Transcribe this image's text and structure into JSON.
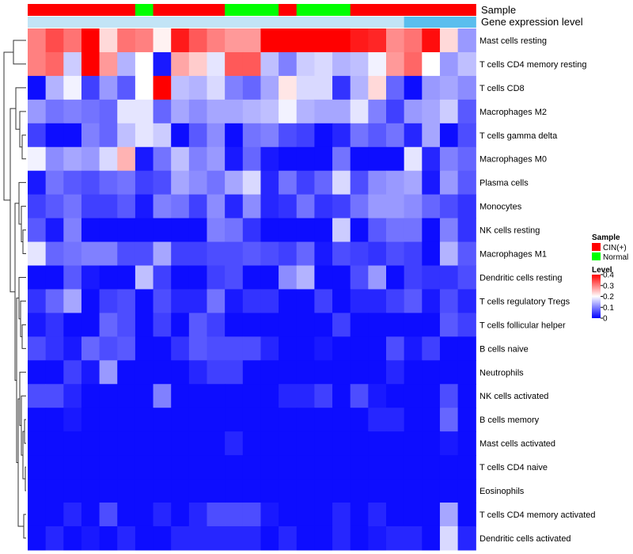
{
  "chart_data": {
    "type": "heatmap",
    "annotation_labels": {
      "sample": "Sample",
      "level": "Gene expression level"
    },
    "legend": {
      "sample_title": "Sample",
      "sample_items": [
        {
          "label": "CIN(+)",
          "color": "#ff0000"
        },
        {
          "label": "Normal",
          "color": "#00ff00"
        }
      ],
      "level_title": "Level",
      "level_ticks": [
        "0.4",
        "0.3",
        "0.2",
        "0.1",
        "0"
      ],
      "level_tick_values": [
        0.4,
        0.3,
        0.2,
        0.1,
        0
      ],
      "color_scale": {
        "min": 0,
        "mid": 0.2,
        "max": 0.4,
        "low": "#0000ff",
        "middle": "#ffffff",
        "high": "#ff0000"
      }
    },
    "column_sample": [
      "CIN",
      "CIN",
      "CIN",
      "CIN",
      "CIN",
      "CIN",
      "N",
      "CIN",
      "CIN",
      "CIN",
      "CIN",
      "N",
      "N",
      "N",
      "CIN",
      "N",
      "N",
      "N",
      "CIN",
      "CIN",
      "CIN",
      "CIN",
      "CIN",
      "CIN",
      "CIN"
    ],
    "column_level": [
      0.12,
      0.12,
      0.12,
      0.12,
      0.12,
      0.12,
      0.12,
      0.12,
      0.12,
      0.12,
      0.12,
      0.12,
      0.12,
      0.12,
      0.12,
      0.12,
      0.12,
      0.12,
      0.12,
      0.12,
      0.12,
      0.16,
      0.16,
      0.16,
      0.16
    ],
    "rows": [
      "Mast cells resting",
      "T cells CD4 memory resting",
      "T cells CD8",
      "Macrophages M2",
      "T cells gamma delta",
      "Macrophages M0",
      "Plasma cells",
      "Monocytes",
      "NK cells resting",
      "Macrophages M1",
      "Dendritic cells resting",
      "T cells regulatory  Tregs",
      "T cells follicular helper",
      "B cells naive",
      "Neutrophils",
      "NK cells activated",
      "B cells memory",
      "Mast cells activated",
      "T cells CD4 naive",
      "Eosinophils",
      "T cells CD4 memory activated",
      "Dendritic cells activated"
    ],
    "values": [
      [
        0.3,
        0.34,
        0.31,
        0.4,
        0.23,
        0.31,
        0.3,
        0.21,
        0.38,
        0.33,
        0.3,
        0.28,
        0.28,
        0.4,
        0.4,
        0.4,
        0.4,
        0.4,
        0.38,
        0.37,
        0.29,
        0.31,
        0.39,
        0.23,
        0.12
      ],
      [
        0.3,
        0.32,
        0.16,
        0.4,
        0.28,
        0.14,
        0.2,
        0.02,
        0.27,
        0.24,
        0.18,
        0.33,
        0.33,
        0.15,
        0.1,
        0.16,
        0.17,
        0.14,
        0.15,
        0.19,
        0.28,
        0.32,
        0.2,
        0.12,
        0.15
      ],
      [
        0.01,
        0.14,
        0.19,
        0.05,
        0.12,
        0.07,
        0.2,
        0.4,
        0.15,
        0.14,
        0.17,
        0.1,
        0.08,
        0.13,
        0.22,
        0.17,
        0.17,
        0.04,
        0.14,
        0.23,
        0.08,
        0.01,
        0.12,
        0.13,
        0.11
      ],
      [
        0.12,
        0.09,
        0.1,
        0.09,
        0.08,
        0.18,
        0.18,
        0.08,
        0.13,
        0.11,
        0.13,
        0.13,
        0.14,
        0.15,
        0.19,
        0.14,
        0.13,
        0.13,
        0.18,
        0.1,
        0.05,
        0.12,
        0.13,
        0.16,
        0.07
      ],
      [
        0.05,
        0.01,
        0.01,
        0.1,
        0.08,
        0.15,
        0.18,
        0.16,
        0.01,
        0.07,
        0.11,
        0.01,
        0.09,
        0.1,
        0.06,
        0.05,
        0.01,
        0.03,
        0.09,
        0.07,
        0.09,
        0.03,
        0.13,
        0.01,
        0.06
      ],
      [
        0.19,
        0.11,
        0.13,
        0.12,
        0.17,
        0.26,
        0.02,
        0.09,
        0.15,
        0.1,
        0.12,
        0.02,
        0.08,
        0.02,
        0.01,
        0.01,
        0.01,
        0.09,
        0.01,
        0.01,
        0.01,
        0.18,
        0.03,
        0.1,
        0.08
      ],
      [
        0.02,
        0.09,
        0.07,
        0.06,
        0.08,
        0.09,
        0.05,
        0.06,
        0.13,
        0.11,
        0.09,
        0.13,
        0.17,
        0.03,
        0.09,
        0.05,
        0.08,
        0.17,
        0.06,
        0.11,
        0.12,
        0.13,
        0.02,
        0.12,
        0.07
      ],
      [
        0.05,
        0.07,
        0.09,
        0.05,
        0.05,
        0.07,
        0.02,
        0.1,
        0.09,
        0.05,
        0.11,
        0.03,
        0.11,
        0.03,
        0.04,
        0.09,
        0.04,
        0.05,
        0.09,
        0.12,
        0.12,
        0.11,
        0.08,
        0.06,
        0.04
      ],
      [
        0.07,
        0.02,
        0.1,
        0.01,
        0.01,
        0.01,
        0.01,
        0.01,
        0.01,
        0.01,
        0.1,
        0.09,
        0.04,
        0.01,
        0.01,
        0.01,
        0.01,
        0.16,
        0.01,
        0.07,
        0.09,
        0.09,
        0.01,
        0.1,
        0.04
      ],
      [
        0.18,
        0.08,
        0.09,
        0.1,
        0.1,
        0.06,
        0.06,
        0.13,
        0.05,
        0.05,
        0.06,
        0.06,
        0.07,
        0.06,
        0.05,
        0.08,
        0.02,
        0.06,
        0.05,
        0.04,
        0.06,
        0.05,
        0.01,
        0.14,
        0.07
      ],
      [
        0.01,
        0.01,
        0.07,
        0.02,
        0.01,
        0.01,
        0.15,
        0.05,
        0.01,
        0.01,
        0.05,
        0.06,
        0.01,
        0.01,
        0.11,
        0.14,
        0.01,
        0.01,
        0.06,
        0.12,
        0.01,
        0.05,
        0.04,
        0.04,
        0.06
      ],
      [
        0.04,
        0.08,
        0.13,
        0.01,
        0.05,
        0.06,
        0.01,
        0.06,
        0.03,
        0.03,
        0.09,
        0.02,
        0.04,
        0.04,
        0.01,
        0.01,
        0.05,
        0.01,
        0.03,
        0.03,
        0.05,
        0.07,
        0.02,
        0.06,
        0.03
      ],
      [
        0.02,
        0.04,
        0.01,
        0.01,
        0.08,
        0.06,
        0.01,
        0.05,
        0.01,
        0.07,
        0.05,
        0.01,
        0.01,
        0.01,
        0.01,
        0.01,
        0.01,
        0.05,
        0.01,
        0.01,
        0.01,
        0.01,
        0.01,
        0.07,
        0.05
      ],
      [
        0.06,
        0.04,
        0.02,
        0.08,
        0.06,
        0.07,
        0.01,
        0.01,
        0.04,
        0.07,
        0.06,
        0.06,
        0.06,
        0.03,
        0.01,
        0.01,
        0.02,
        0.01,
        0.01,
        0.01,
        0.06,
        0.02,
        0.05,
        0.01,
        0.01
      ],
      [
        0.01,
        0.01,
        0.05,
        0.02,
        0.12,
        0.01,
        0.01,
        0.01,
        0.01,
        0.03,
        0.05,
        0.05,
        0.01,
        0.01,
        0.01,
        0.01,
        0.01,
        0.01,
        0.01,
        0.01,
        0.03,
        0.01,
        0.01,
        0.01,
        0.01
      ],
      [
        0.06,
        0.06,
        0.03,
        0.01,
        0.01,
        0.01,
        0.01,
        0.1,
        0.01,
        0.01,
        0.01,
        0.01,
        0.01,
        0.01,
        0.03,
        0.03,
        0.05,
        0.01,
        0.06,
        0.02,
        0.01,
        0.01,
        0.01,
        0.06,
        0.01
      ],
      [
        0.01,
        0.01,
        0.02,
        0.01,
        0.01,
        0.01,
        0.01,
        0.01,
        0.01,
        0.01,
        0.01,
        0.01,
        0.01,
        0.01,
        0.01,
        0.01,
        0.01,
        0.01,
        0.01,
        0.03,
        0.03,
        0.01,
        0.01,
        0.08,
        0.01
      ],
      [
        0.01,
        0.01,
        0.01,
        0.01,
        0.01,
        0.01,
        0.01,
        0.01,
        0.01,
        0.01,
        0.01,
        0.03,
        0.01,
        0.01,
        0.01,
        0.01,
        0.01,
        0.01,
        0.01,
        0.01,
        0.01,
        0.01,
        0.01,
        0.02,
        0.01
      ],
      [
        0.01,
        0.01,
        0.01,
        0.01,
        0.01,
        0.01,
        0.01,
        0.01,
        0.01,
        0.01,
        0.01,
        0.01,
        0.01,
        0.01,
        0.01,
        0.01,
        0.01,
        0.01,
        0.01,
        0.01,
        0.01,
        0.01,
        0.01,
        0.01,
        0.01
      ],
      [
        0.01,
        0.01,
        0.01,
        0.01,
        0.01,
        0.01,
        0.01,
        0.01,
        0.01,
        0.01,
        0.01,
        0.01,
        0.01,
        0.01,
        0.01,
        0.01,
        0.01,
        0.01,
        0.01,
        0.01,
        0.01,
        0.01,
        0.01,
        0.01,
        0.01
      ],
      [
        0.01,
        0.01,
        0.03,
        0.01,
        0.06,
        0.01,
        0.01,
        0.03,
        0.01,
        0.03,
        0.06,
        0.06,
        0.06,
        0.02,
        0.01,
        0.01,
        0.01,
        0.03,
        0.01,
        0.03,
        0.01,
        0.01,
        0.01,
        0.13,
        0.01
      ],
      [
        0.01,
        0.03,
        0.01,
        0.02,
        0.01,
        0.03,
        0.01,
        0.01,
        0.03,
        0.03,
        0.03,
        0.03,
        0.03,
        0.01,
        0.03,
        0.01,
        0.01,
        0.03,
        0.01,
        0.02,
        0.03,
        0.03,
        0.01,
        0.17,
        0.03
      ]
    ]
  }
}
